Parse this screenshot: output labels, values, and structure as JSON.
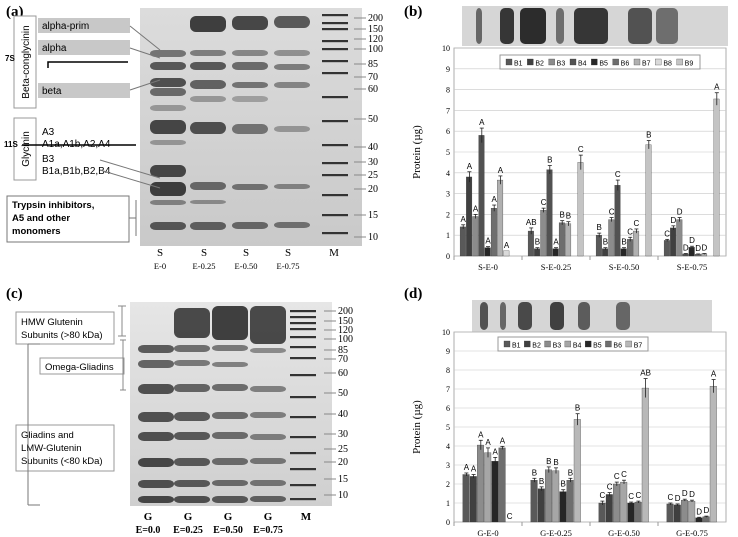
{
  "panels": {
    "a": {
      "label": "(a)",
      "family_7s": "7S",
      "family_11s": "11S",
      "beta_conglycinin": "Beta-conglycinin",
      "glycinin": "Glycinin",
      "alpha_prim": "alpha-prim",
      "alpha": "alpha",
      "beta": "beta",
      "a3": "A3",
      "a3_sub": "A1a,A1b,A2,A4",
      "b3": "B3",
      "b3_sub": "B1a,B1b,B2,B4",
      "trypsin": "Trypsin inhibitors, A5 and other monomers",
      "trypsin_lines": [
        "Trypsin inhibitors,",
        "A5 and other",
        "monomers"
      ],
      "markers": [
        "200",
        "150",
        "120",
        "100",
        "85",
        "70",
        "60",
        "50",
        "40",
        "30",
        "25",
        "20",
        "15",
        "10"
      ],
      "lanes": [
        {
          "top": "S",
          "bottom": "E-0"
        },
        {
          "top": "S",
          "bottom": "E-0.25"
        },
        {
          "top": "S",
          "bottom": "E-0.50"
        },
        {
          "top": "S",
          "bottom": "E-0.75"
        },
        {
          "top": "M",
          "bottom": ""
        }
      ]
    },
    "c": {
      "label": "(c)",
      "hmw_lines": [
        "HMW Glutenin",
        "Subunits (>80 kDa)"
      ],
      "omega": "Omega-Gliadins",
      "gliadin_lines": [
        "Gliadins and",
        "LMW-Glutenin",
        "Subunits (<80 kDa)"
      ],
      "markers": [
        "200",
        "150",
        "120",
        "100",
        "85",
        "70",
        "60",
        "50",
        "40",
        "30",
        "25",
        "20",
        "15",
        "10"
      ],
      "lanes": [
        {
          "top": "G",
          "bottom": "E=0.0"
        },
        {
          "top": "G",
          "bottom": "E=0.25"
        },
        {
          "top": "G",
          "bottom": "E=0.50"
        },
        {
          "top": "G",
          "bottom": "E=0.75"
        },
        {
          "top": "M",
          "bottom": ""
        }
      ]
    }
  },
  "chart_data": [
    {
      "panel": "(b)",
      "type": "bar",
      "ylabel": "Protein (µg)",
      "ylim": [
        0,
        10
      ],
      "yticks": [
        0,
        1,
        2,
        3,
        4,
        5,
        6,
        7,
        8,
        9,
        10
      ],
      "categories": [
        "S-E-0",
        "S-E-0.25",
        "S-E-0.50",
        "S-E-0.75"
      ],
      "legend_position": "top",
      "series": [
        {
          "name": "B1",
          "color": "#595959",
          "values": [
            1.4,
            1.2,
            1.0,
            0.75
          ],
          "errors": [
            0.1,
            0.15,
            0.1,
            0.05
          ],
          "letters": [
            "A",
            "AB",
            "B",
            "C"
          ]
        },
        {
          "name": "B2",
          "color": "#404040",
          "values": [
            3.8,
            0.35,
            0.35,
            1.35
          ],
          "errors": [
            0.25,
            0.05,
            0.05,
            0.1
          ],
          "letters": [
            "A",
            "B",
            "B",
            "D"
          ]
        },
        {
          "name": "B3",
          "color": "#8c8c8c",
          "values": [
            1.9,
            2.2,
            1.75,
            1.75
          ],
          "errors": [
            0.1,
            0.1,
            0.1,
            0.1
          ],
          "letters": [
            "A",
            "C",
            "C",
            "D"
          ]
        },
        {
          "name": "B4",
          "color": "#525252",
          "values": [
            5.8,
            4.15,
            3.4,
            0.1
          ],
          "errors": [
            0.35,
            0.2,
            0.25,
            0.02
          ],
          "letters": [
            "A",
            "B",
            "C",
            "D"
          ]
        },
        {
          "name": "B5",
          "color": "#262626",
          "values": [
            0.4,
            0.35,
            0.35,
            0.42
          ],
          "errors": [
            0.05,
            0.05,
            0.05,
            0.05
          ],
          "letters": [
            "A",
            "A",
            "B",
            "D"
          ]
        },
        {
          "name": "B6",
          "color": "#6e6e6e",
          "values": [
            2.3,
            1.6,
            0.8,
            0.08
          ],
          "errors": [
            0.15,
            0.1,
            0.1,
            0.02
          ],
          "letters": [
            "A",
            "B",
            "C",
            "D"
          ]
        },
        {
          "name": "B7",
          "color": "#b0b0b0",
          "values": [
            3.65,
            1.55,
            1.2,
            0.1
          ],
          "errors": [
            0.2,
            0.1,
            0.1,
            0.02
          ],
          "letters": [
            "A",
            "B",
            "C",
            "D"
          ]
        },
        {
          "name": "B8",
          "color": "#d9d9d9",
          "values": [
            0.25,
            0.0,
            0.0,
            0.0
          ],
          "errors": [
            0.0,
            0.0,
            0.0,
            0.0
          ],
          "letters": [
            "A",
            "",
            "",
            ""
          ]
        },
        {
          "name": "B9",
          "color": "#c4c4c4",
          "values": [
            0.0,
            4.5,
            5.35,
            7.55
          ],
          "errors": [
            0.0,
            0.35,
            0.2,
            0.3
          ],
          "letters": [
            "",
            "C",
            "B",
            "A"
          ]
        }
      ]
    },
    {
      "panel": "(d)",
      "type": "bar",
      "ylabel": "Protein (µg)",
      "ylim": [
        0,
        10
      ],
      "yticks": [
        0,
        1,
        2,
        3,
        4,
        5,
        6,
        7,
        8,
        9,
        10
      ],
      "categories": [
        "G-E-0",
        "G-E-0.25",
        "G-E-0.50",
        "G-E-0.75"
      ],
      "legend_position": "top",
      "series": [
        {
          "name": "B1",
          "color": "#595959",
          "values": [
            2.5,
            2.2,
            1.0,
            0.95
          ],
          "errors": [
            0.08,
            0.1,
            0.1,
            0.05
          ],
          "letters": [
            "A",
            "B",
            "C",
            "C"
          ]
        },
        {
          "name": "B2",
          "color": "#404040",
          "values": [
            2.4,
            1.75,
            1.45,
            0.9
          ],
          "errors": [
            0.1,
            0.1,
            0.1,
            0.05
          ],
          "letters": [
            "A",
            "B",
            "C",
            "D"
          ]
        },
        {
          "name": "B3",
          "color": "#8c8c8c",
          "values": [
            4.05,
            2.75,
            2.0,
            1.15
          ],
          "errors": [
            0.25,
            0.15,
            0.1,
            0.05
          ],
          "letters": [
            "A",
            "B",
            "C",
            "D"
          ]
        },
        {
          "name": "B4",
          "color": "#a6a6a6",
          "values": [
            3.65,
            2.7,
            2.1,
            1.1
          ],
          "errors": [
            0.25,
            0.15,
            0.1,
            0.05
          ],
          "letters": [
            "A",
            "B",
            "C",
            "D"
          ]
        },
        {
          "name": "B5",
          "color": "#262626",
          "values": [
            3.2,
            1.6,
            1.0,
            0.22
          ],
          "errors": [
            0.2,
            0.1,
            0.05,
            0.03
          ],
          "letters": [
            "A",
            "B",
            "C",
            "D"
          ]
        },
        {
          "name": "B6",
          "color": "#6e6e6e",
          "values": [
            3.9,
            2.2,
            1.05,
            0.28
          ],
          "errors": [
            0.08,
            0.1,
            0.05,
            0.03
          ],
          "letters": [
            "A",
            "B",
            "C",
            "D"
          ]
        },
        {
          "name": "B7",
          "color": "#b8b8b8",
          "values": [
            0.0,
            5.4,
            7.05,
            7.15
          ],
          "errors": [
            0.0,
            0.3,
            0.5,
            0.35
          ],
          "letters": [
            "C",
            "B",
            "AB",
            "A"
          ]
        }
      ]
    }
  ]
}
